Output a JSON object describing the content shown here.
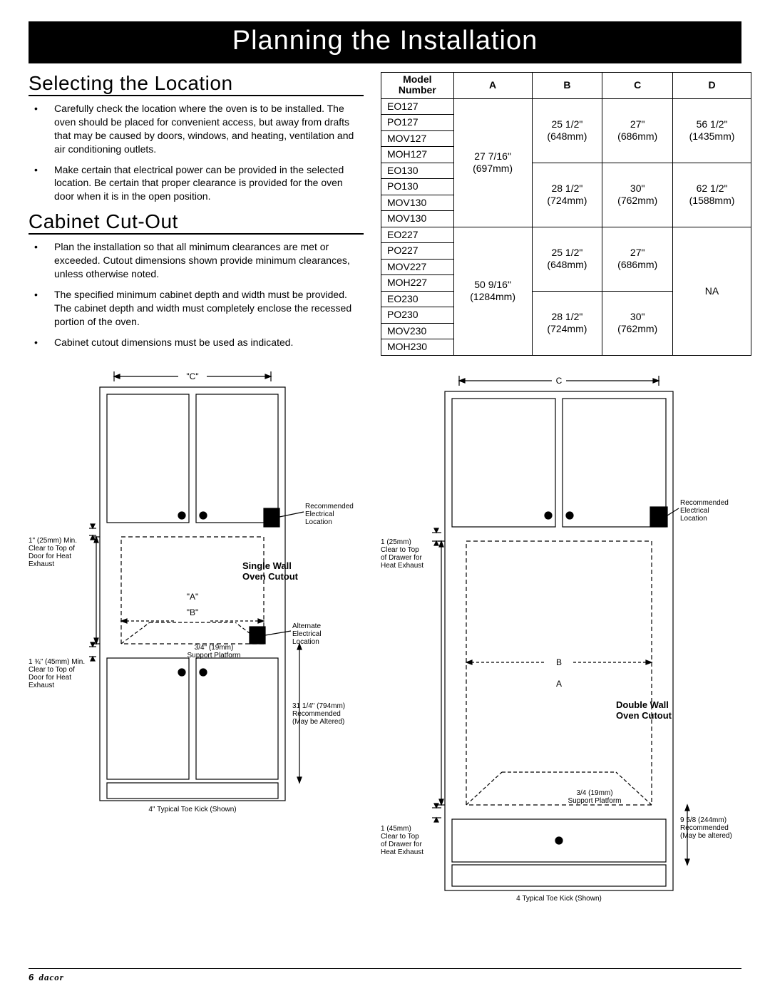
{
  "page_title": "Planning the Installation",
  "sections": {
    "selecting": {
      "heading": "Selecting the Location",
      "bullets": [
        "Carefully check the location where the oven is to be installed. The oven should be placed for convenient access, but away from drafts that may be caused by doors, windows, and heating, ventilation and air conditioning outlets.",
        "Make certain that electrical power can be provided in the selected location. Be certain that proper clearance is provided for the oven door when it is in the open position."
      ]
    },
    "cutout": {
      "heading": "Cabinet Cut-Out",
      "bullets": [
        "Plan the installation so that all minimum clearances are met or exceeded. Cutout dimensions shown provide minimum clearances, unless otherwise noted.",
        "The specified minimum cabinet depth and width must be provided. The cabinet depth and width must completely enclose the recessed portion of the oven.",
        "Cabinet cutout dimensions must be used as indicated."
      ]
    }
  },
  "table": {
    "headers": [
      "Model Number",
      "A",
      "B",
      "C",
      "D"
    ],
    "groups": [
      {
        "models": [
          "EO127",
          "PO127",
          "MOV127",
          "MOH127"
        ],
        "A": "27 7/16\"\n(697mm)",
        "B": "25 1/2\"\n(648mm)",
        "C": "27\"\n(686mm)",
        "D": "56 1/2\"\n(1435mm)"
      },
      {
        "models": [
          "EO130",
          "PO130",
          "MOV130",
          "MOV130"
        ],
        "A": "27 7/16\"\n(697mm)",
        "B": "28 1/2\"\n(724mm)",
        "C": "30\"\n(762mm)",
        "D": "62 1/2\"\n(1588mm)"
      },
      {
        "models": [
          "EO227",
          "PO227",
          "MOV227",
          "MOH227"
        ],
        "A": "50 9/16\"\n(1284mm)",
        "B": "25 1/2\"\n(648mm)",
        "C": "27\"\n(686mm)",
        "D": "NA"
      },
      {
        "models": [
          "EO230",
          "PO230",
          "MOV230",
          "MOH230"
        ],
        "A": "50 9/16\"\n(1284mm)",
        "B": "28 1/2\"\n(724mm)",
        "C": "30\"\n(762mm)",
        "D": "NA"
      }
    ]
  },
  "diagram_single": {
    "title": "Single Wall\nOven Cutout",
    "dim_C": "\"C\"",
    "dim_A": "\"A\"",
    "dim_B": "\"B\"",
    "label_rec_elec": "Recommended\nElectrical\nLocation",
    "label_alt_elec": "Alternate\nElectrical\nLocation",
    "label_clear_top": "1\" (25mm) Min.\nClear to Top of\nDoor for Heat\nExhaust",
    "label_clear_bot": "1 ¾\" (45mm) Min.\nClear to Top of\nDoor for Heat\nExhaust",
    "label_platform": "3/4\" (19mm)\nSupport Platform",
    "label_rec_height": "31 1/4\" (794mm)\nRecommended\n(May be Altered)",
    "label_toekick": "4\" Typical Toe Kick (Shown)"
  },
  "diagram_double": {
    "title": "Double Wall\nOven Cutout",
    "dim_C": "C",
    "dim_A": "A",
    "dim_B": "B",
    "label_rec_elec": "Recommended\nElectrical\nLocation",
    "label_clear_top": "1  (25mm)\nClear to Top\nof Drawer for\nHeat Exhaust",
    "label_clear_bot": "1  (45mm)\nClear to Top\nof Drawer for\nHeat Exhaust",
    "label_platform": "3/4  (19mm)\nSupport Platform",
    "label_rec_height": "9 5/8  (244mm)\nRecommended\n(May be altered)",
    "label_toekick": "4  Typical Toe Kick (Shown)"
  },
  "footer": {
    "page": "6",
    "brand": "dacor"
  },
  "colors": {
    "bg": "#ffffff",
    "fg": "#000000"
  }
}
